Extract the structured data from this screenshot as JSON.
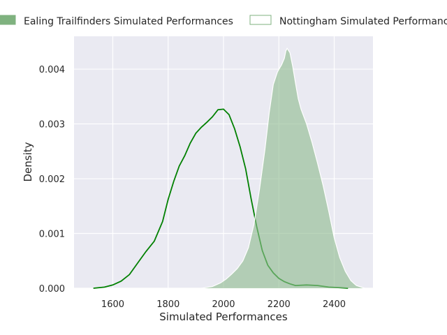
{
  "chart_data": {
    "type": "area",
    "title": "",
    "xlabel": "Simulated Performances",
    "ylabel": "Density",
    "xlim": [
      1460,
      2540
    ],
    "ylim": [
      0,
      0.0046
    ],
    "xticks": [
      1600,
      1800,
      2000,
      2200,
      2400
    ],
    "xtick_labels": [
      "1600",
      "1800",
      "2000",
      "2200",
      "2400"
    ],
    "yticks": [
      0.0,
      0.001,
      0.002,
      0.003,
      0.004
    ],
    "ytick_labels": [
      "0.000",
      "0.001",
      "0.002",
      "0.003",
      "0.004"
    ],
    "grid": true,
    "legend_position": "top",
    "series": [
      {
        "name": "Ealing Trailfinders Simulated Performances",
        "style": "line",
        "color": "#008000",
        "x": [
          1530,
          1570,
          1600,
          1630,
          1660,
          1690,
          1720,
          1750,
          1780,
          1800,
          1820,
          1840,
          1860,
          1880,
          1900,
          1920,
          1940,
          1960,
          1980,
          2000,
          2020,
          2040,
          2060,
          2080,
          2100,
          2120,
          2140,
          2160,
          2180,
          2200,
          2220,
          2240,
          2260,
          2300,
          2340,
          2380,
          2420,
          2450
        ],
        "y": [
          0.0,
          2e-05,
          6e-05,
          0.00013,
          0.00025,
          0.00046,
          0.00067,
          0.00086,
          0.00122,
          0.00162,
          0.00195,
          0.00223,
          0.00242,
          0.00265,
          0.00283,
          0.00294,
          0.00303,
          0.00313,
          0.00326,
          0.00327,
          0.00317,
          0.00291,
          0.00258,
          0.00218,
          0.00163,
          0.00112,
          0.00069,
          0.00042,
          0.00028,
          0.00018,
          0.00012,
          8e-05,
          5e-05,
          6e-05,
          5e-05,
          2e-05,
          1e-05,
          0.0
        ]
      },
      {
        "name": "Nottingham Simulated Performances",
        "style": "area",
        "color": "#8fbc8f",
        "x": [
          1920,
          1960,
          1990,
          2010,
          2030,
          2050,
          2070,
          2090,
          2110,
          2130,
          2150,
          2165,
          2180,
          2195,
          2210,
          2220,
          2225,
          2230,
          2240,
          2250,
          2260,
          2270,
          2280,
          2300,
          2320,
          2340,
          2360,
          2380,
          2400,
          2420,
          2440,
          2460,
          2480,
          2510
        ],
        "y": [
          0.0,
          3e-05,
          0.0001,
          0.00017,
          0.00026,
          0.00036,
          0.0005,
          0.00074,
          0.00117,
          0.0018,
          0.00254,
          0.0032,
          0.00372,
          0.00395,
          0.00408,
          0.0042,
          0.00433,
          0.00438,
          0.0043,
          0.00405,
          0.00375,
          0.00346,
          0.00327,
          0.003,
          0.00266,
          0.00228,
          0.00187,
          0.00141,
          0.00092,
          0.00056,
          0.00031,
          0.00014,
          5e-05,
          0.0
        ]
      }
    ]
  }
}
